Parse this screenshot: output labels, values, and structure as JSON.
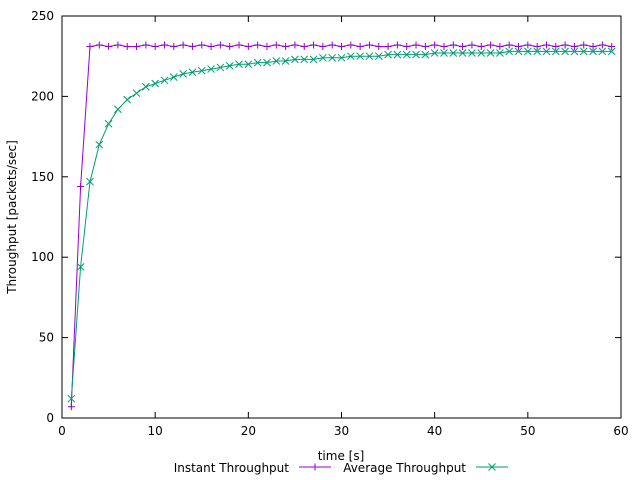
{
  "chart_data": {
    "type": "line",
    "title": "",
    "xlabel": "time [s]",
    "ylabel": "Throughput [packets/sec]",
    "xlim": [
      0,
      60
    ],
    "ylim": [
      0,
      250
    ],
    "x_ticks": [
      0,
      10,
      20,
      30,
      40,
      50,
      60
    ],
    "y_ticks": [
      0,
      50,
      100,
      150,
      200,
      250
    ],
    "grid": false,
    "legend_position": "bottom",
    "x": [
      1,
      2,
      3,
      4,
      5,
      6,
      7,
      8,
      9,
      10,
      11,
      12,
      13,
      14,
      15,
      16,
      17,
      18,
      19,
      20,
      21,
      22,
      23,
      24,
      25,
      26,
      27,
      28,
      29,
      30,
      31,
      32,
      33,
      34,
      35,
      36,
      37,
      38,
      39,
      40,
      41,
      42,
      43,
      44,
      45,
      46,
      47,
      48,
      49,
      50,
      51,
      52,
      53,
      54,
      55,
      56,
      57,
      58,
      59
    ],
    "series": [
      {
        "name": "Instant Throughput",
        "color": "#9400d3",
        "marker": "plus",
        "values": [
          7,
          144,
          231,
          232,
          231,
          232,
          231,
          231,
          232,
          231,
          232,
          231,
          232,
          231,
          232,
          231,
          232,
          231,
          232,
          231,
          232,
          231,
          232,
          231,
          232,
          231,
          232,
          231,
          232,
          231,
          232,
          231,
          232,
          231,
          231,
          232,
          231,
          232,
          231,
          232,
          231,
          232,
          231,
          232,
          231,
          232,
          231,
          232,
          231,
          232,
          231,
          232,
          231,
          232,
          231,
          232,
          231,
          232,
          231
        ]
      },
      {
        "name": "Average Throughput",
        "color": "#009e73",
        "marker": "cross",
        "values": [
          12,
          94,
          147,
          170,
          183,
          192,
          198,
          202,
          206,
          208,
          210,
          212,
          214,
          215,
          216,
          217,
          218,
          219,
          220,
          220,
          221,
          221,
          222,
          222,
          223,
          223,
          223,
          224,
          224,
          224,
          225,
          225,
          225,
          225,
          226,
          226,
          226,
          226,
          226,
          227,
          227,
          227,
          227,
          227,
          227,
          227,
          227,
          228,
          228,
          228,
          228,
          228,
          228,
          228,
          228,
          228,
          228,
          228,
          228
        ]
      }
    ]
  }
}
